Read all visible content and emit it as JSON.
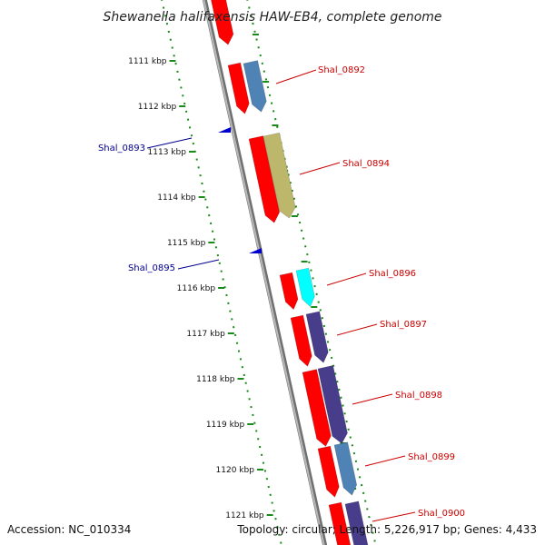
{
  "title": "Shewanella halifaxensis HAW-EB4, complete genome",
  "accession": "Accession: NC_010334",
  "topology": "Topology: circular; Length: 5,226,917 bp; Genes: 4,433",
  "colors": {
    "backbone": "#8a8a8a",
    "tick": "#1a8a1a",
    "reverse_label": "#cc0000",
    "forward_label": "#00008b",
    "red_feature": "#ff0000",
    "steel_blue": "#4f83b6",
    "khaki": "#bdb76b",
    "cyan": "#00ffff",
    "dark_slate_blue": "#483d8b",
    "forward_arrow": "#0000cc"
  },
  "kbp_ticks": [
    "1111 kbp",
    "1112 kbp",
    "1113 kbp",
    "1114 kbp",
    "1115 kbp",
    "1116 kbp",
    "1117 kbp",
    "1118 kbp",
    "1119 kbp",
    "1120 kbp",
    "1121 kbp"
  ],
  "genes": [
    {
      "label": "Shal_0892",
      "strand": "reverse"
    },
    {
      "label": "Shal_0893",
      "strand": "forward"
    },
    {
      "label": "Shal_0894",
      "strand": "reverse"
    },
    {
      "label": "Shal_0895",
      "strand": "forward"
    },
    {
      "label": "Shal_0896",
      "strand": "reverse"
    },
    {
      "label": "Shal_0897",
      "strand": "reverse"
    },
    {
      "label": "Shal_0898",
      "strand": "reverse"
    },
    {
      "label": "Shal_0899",
      "strand": "reverse"
    },
    {
      "label": "Shal_0900",
      "strand": "reverse"
    }
  ]
}
